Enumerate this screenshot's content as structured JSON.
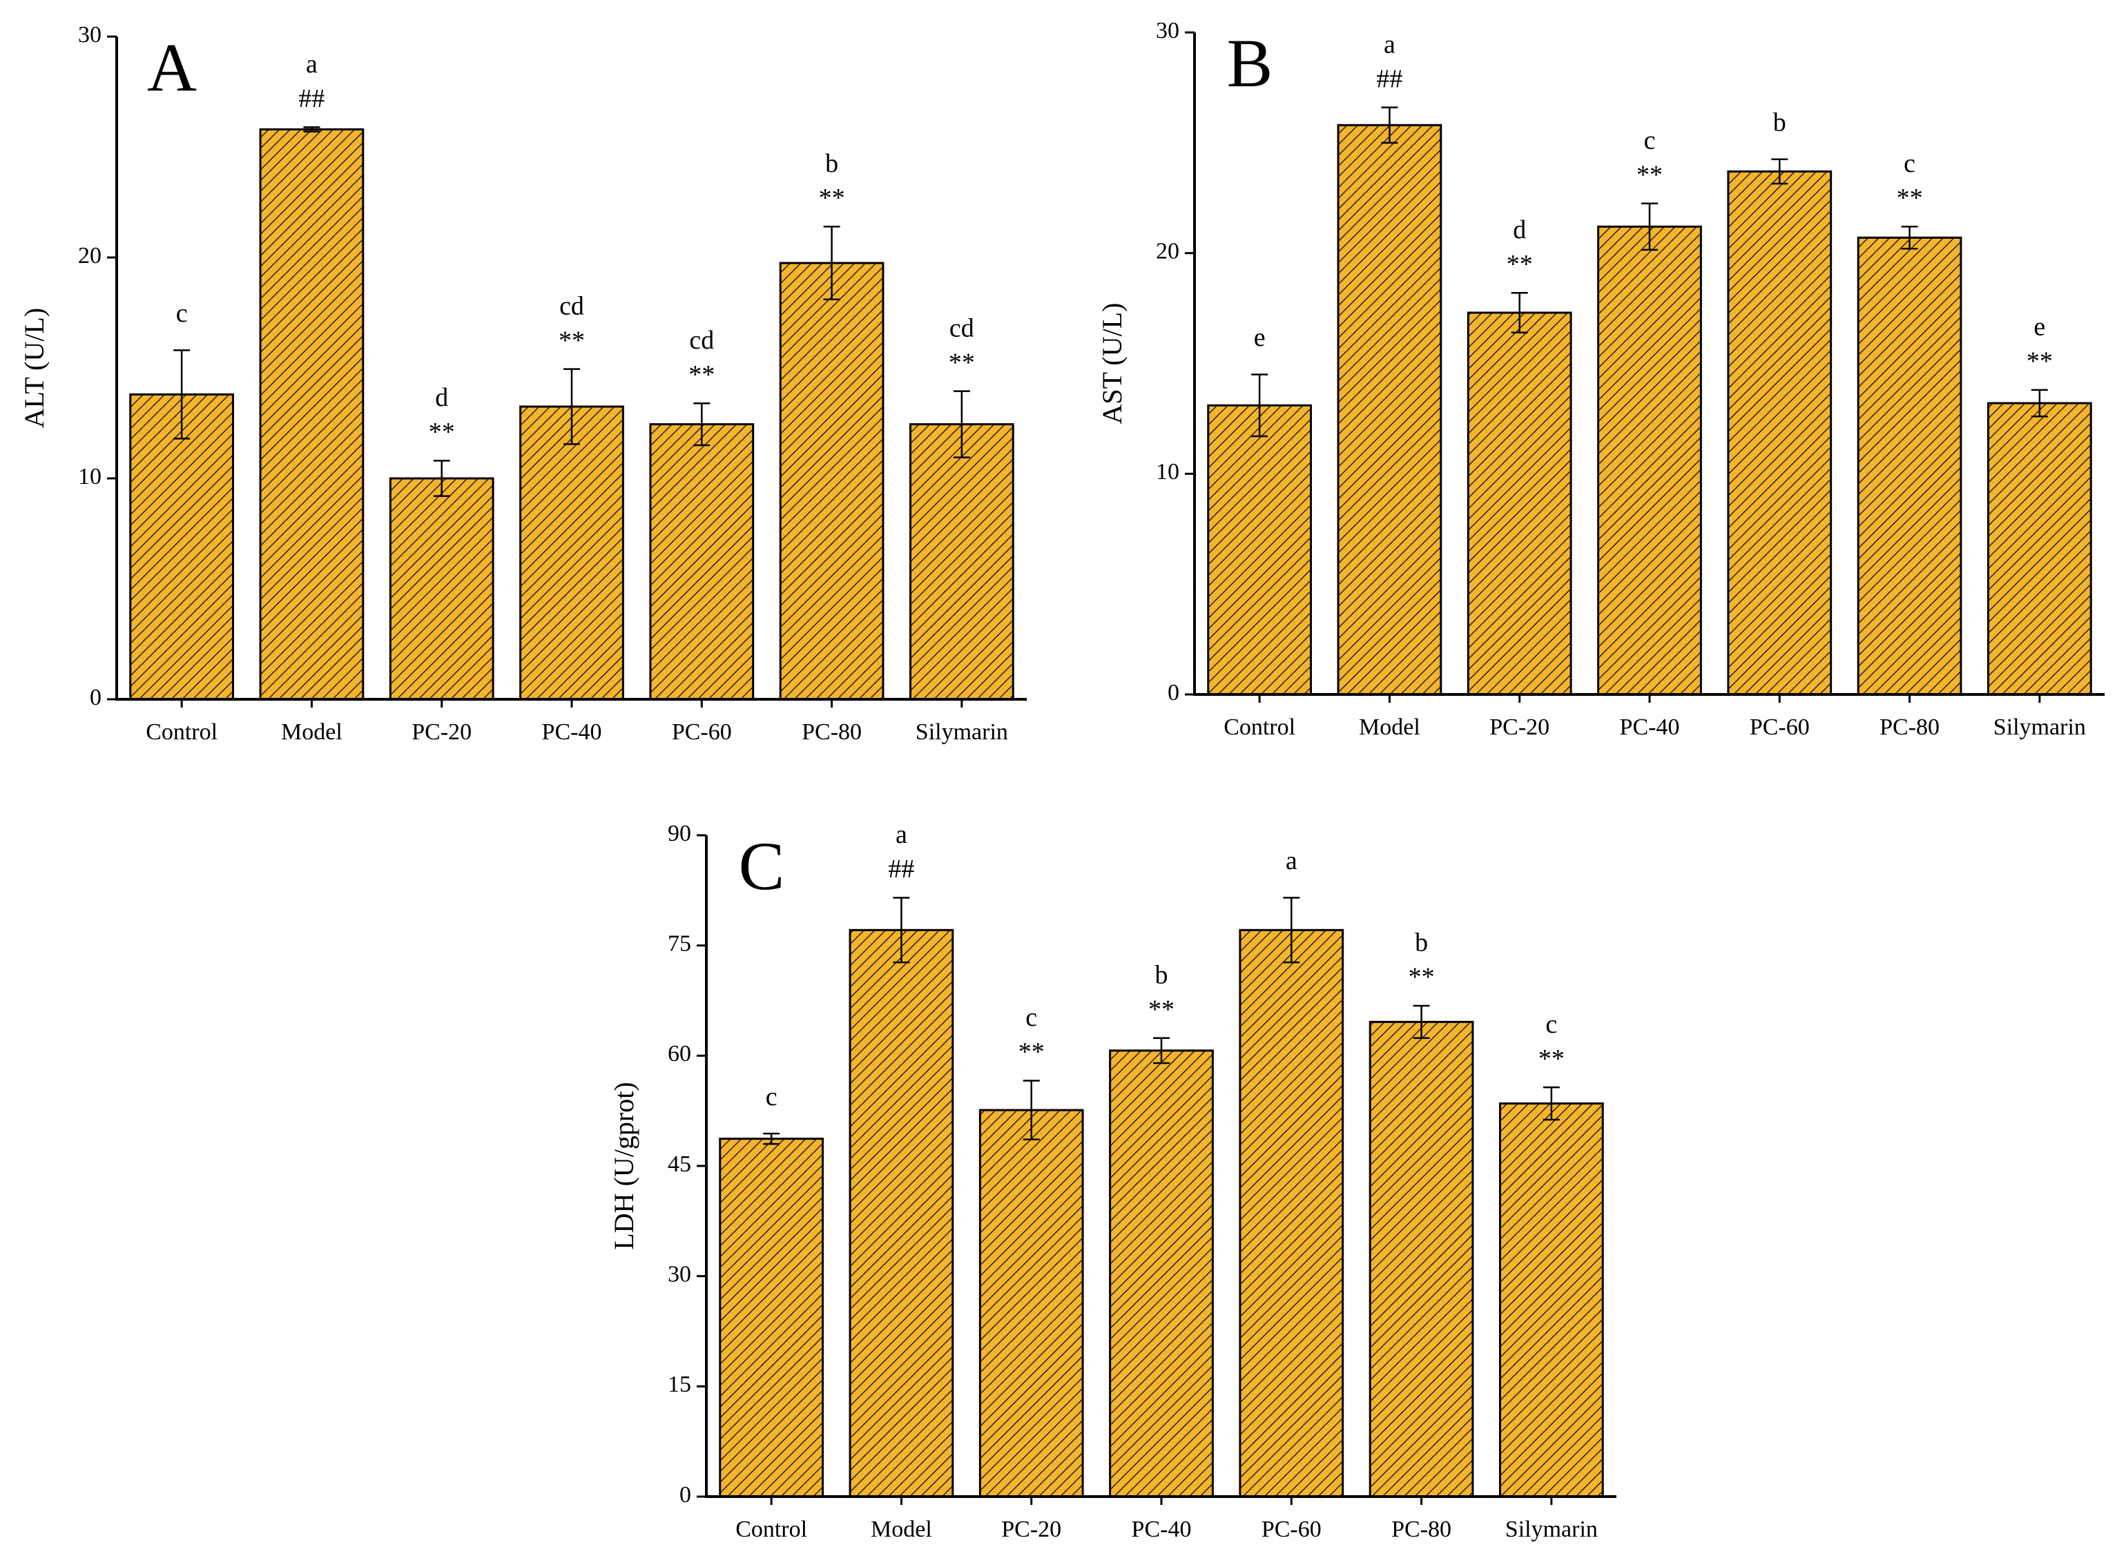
{
  "chart_data": [
    {
      "type": "bar",
      "panel_label": "A",
      "ylabel": "ALT (U/L)",
      "categories": [
        "Control",
        "Model",
        "PC-20",
        "PC-40",
        "PC-60",
        "PC-80",
        "Silymarin"
      ],
      "values": [
        13.8,
        25.8,
        10.0,
        13.25,
        12.45,
        19.75,
        12.45
      ],
      "errors": [
        2.0,
        0.1,
        0.8,
        1.7,
        0.95,
        1.65,
        1.5
      ],
      "letters": [
        "c",
        "a",
        "d",
        "cd",
        "cd",
        "b",
        "cd"
      ],
      "marks": [
        null,
        "##",
        "**",
        "**",
        "**",
        "**",
        "**"
      ],
      "color": "#f5b42a",
      "ylim": [
        0,
        30
      ],
      "yticks": [
        0,
        10,
        20,
        30
      ],
      "grid": false
    },
    {
      "type": "bar",
      "panel_label": "B",
      "ylabel": "AST (U/L)",
      "categories": [
        "Control",
        "Model",
        "PC-20",
        "PC-40",
        "PC-60",
        "PC-80",
        "Silymarin"
      ],
      "values": [
        13.1,
        25.8,
        17.3,
        21.2,
        23.7,
        20.7,
        13.2
      ],
      "errors": [
        1.4,
        0.8,
        0.9,
        1.05,
        0.55,
        0.5,
        0.6
      ],
      "letters": [
        "e",
        "a",
        "d",
        "c",
        "b",
        "c",
        "e"
      ],
      "marks": [
        null,
        "##",
        "**",
        "**",
        null,
        "**",
        "**"
      ],
      "color": "#f5b42a",
      "ylim": [
        0,
        30
      ],
      "yticks": [
        0,
        10,
        20,
        30
      ],
      "grid": false
    },
    {
      "type": "bar",
      "panel_label": "C",
      "ylabel": "LDH (U/gprot)",
      "categories": [
        "Control",
        "Model",
        "PC-20",
        "PC-40",
        "PC-60",
        "PC-80",
        "Silymarin"
      ],
      "values": [
        48.7,
        77.1,
        52.6,
        60.7,
        77.1,
        64.6,
        53.5
      ],
      "errors": [
        0.7,
        4.4,
        4.0,
        1.7,
        4.4,
        2.2,
        2.2
      ],
      "letters": [
        "c",
        "a",
        "c",
        "b",
        "a",
        "b",
        "c"
      ],
      "marks": [
        null,
        "##",
        "**",
        "**",
        null,
        "**",
        "**"
      ],
      "color": "#f5b42a",
      "ylim": [
        0,
        90
      ],
      "yticks": [
        0,
        15,
        30,
        45,
        60,
        75,
        90
      ],
      "grid": false
    }
  ]
}
